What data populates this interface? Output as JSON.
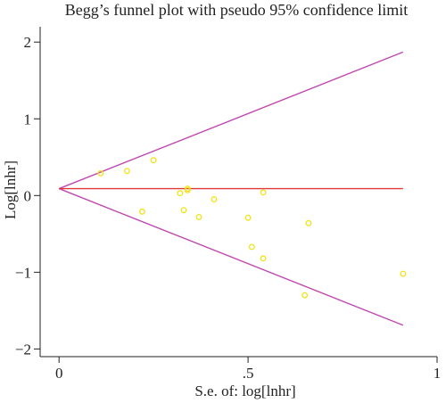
{
  "chart_data": {
    "type": "scatter",
    "title": "Begg’s funnel plot with pseudo 95% confidence limit",
    "xlabel": "S.e. of: log[lnhr]",
    "ylabel": "Log[lnhr]",
    "xlim": [
      -0.05,
      1.0
    ],
    "ylim": [
      -2.1,
      2.2
    ],
    "x_ticks": [
      {
        "value": 0,
        "label": "0"
      },
      {
        "value": 0.5,
        "label": ".5"
      },
      {
        "value": 1,
        "label": "1"
      }
    ],
    "y_ticks": [
      {
        "value": 2,
        "label": "2"
      },
      {
        "value": 1,
        "label": "1"
      },
      {
        "value": 0,
        "label": "0"
      },
      {
        "value": -1,
        "label": "−1"
      },
      {
        "value": -2,
        "label": "−2"
      }
    ],
    "grid": false,
    "pooled_estimate": 0.09,
    "funnel_max_se": 0.91,
    "lines": [
      {
        "name": "upper pseudo 95% limit",
        "color": "#c048b0",
        "points": [
          [
            0,
            0.09
          ],
          [
            0.91,
            1.87
          ]
        ]
      },
      {
        "name": "lower pseudo 95% limit",
        "color": "#c048b0",
        "points": [
          [
            0,
            0.09
          ],
          [
            0.91,
            -1.69
          ]
        ]
      },
      {
        "name": "pooled estimate",
        "color": "#e0383a",
        "points": [
          [
            0,
            0.09
          ],
          [
            0.91,
            0.09
          ]
        ]
      }
    ],
    "points_color": "#f2e218",
    "points": [
      {
        "x": 0.11,
        "y": 0.29
      },
      {
        "x": 0.18,
        "y": 0.32
      },
      {
        "x": 0.25,
        "y": 0.46
      },
      {
        "x": 0.22,
        "y": -0.21
      },
      {
        "x": 0.32,
        "y": 0.03
      },
      {
        "x": 0.34,
        "y": 0.09
      },
      {
        "x": 0.34,
        "y": 0.07
      },
      {
        "x": 0.33,
        "y": -0.19
      },
      {
        "x": 0.37,
        "y": -0.28
      },
      {
        "x": 0.41,
        "y": -0.05
      },
      {
        "x": 0.5,
        "y": -0.29
      },
      {
        "x": 0.54,
        "y": 0.04
      },
      {
        "x": 0.51,
        "y": -0.67
      },
      {
        "x": 0.54,
        "y": -0.82
      },
      {
        "x": 0.66,
        "y": -0.36
      },
      {
        "x": 0.65,
        "y": -1.3
      },
      {
        "x": 0.91,
        "y": -1.02
      }
    ]
  }
}
